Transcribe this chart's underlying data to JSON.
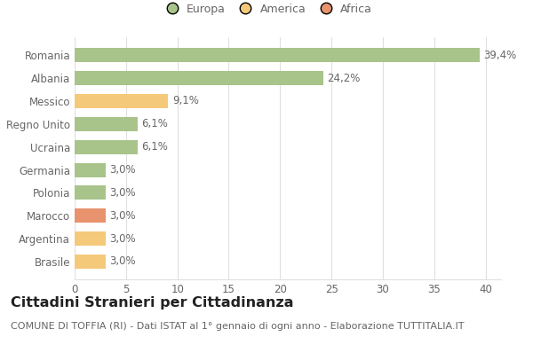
{
  "categories": [
    "Brasile",
    "Argentina",
    "Marocco",
    "Polonia",
    "Germania",
    "Ucraina",
    "Regno Unito",
    "Messico",
    "Albania",
    "Romania"
  ],
  "values": [
    3.0,
    3.0,
    3.0,
    3.0,
    3.0,
    6.1,
    6.1,
    9.1,
    24.2,
    39.4
  ],
  "labels": [
    "3,0%",
    "3,0%",
    "3,0%",
    "3,0%",
    "3,0%",
    "6,1%",
    "6,1%",
    "9,1%",
    "24,2%",
    "39,4%"
  ],
  "colors": [
    "#f5c97a",
    "#f5c97a",
    "#e8926e",
    "#a8c48a",
    "#a8c48a",
    "#a8c48a",
    "#a8c48a",
    "#f5c97a",
    "#a8c48a",
    "#a8c48a"
  ],
  "legend": {
    "Europa": "#a8c48a",
    "America": "#f5c97a",
    "Africa": "#e8926e"
  },
  "title": "Cittadini Stranieri per Cittadinanza",
  "subtitle": "COMUNE DI TOFFIA (RI) - Dati ISTAT al 1° gennaio di ogni anno - Elaborazione TUTTITALIA.IT",
  "xlim": [
    0,
    41.5
  ],
  "xticks": [
    0,
    5,
    10,
    15,
    20,
    25,
    30,
    35,
    40
  ],
  "background_color": "#ffffff",
  "grid_color": "#e0e0e0",
  "bar_height": 0.62,
  "label_fontsize": 8.5,
  "title_fontsize": 11.5,
  "subtitle_fontsize": 8,
  "tick_fontsize": 8.5,
  "ylabel_fontsize": 8.5,
  "text_color": "#666666",
  "title_color": "#222222"
}
